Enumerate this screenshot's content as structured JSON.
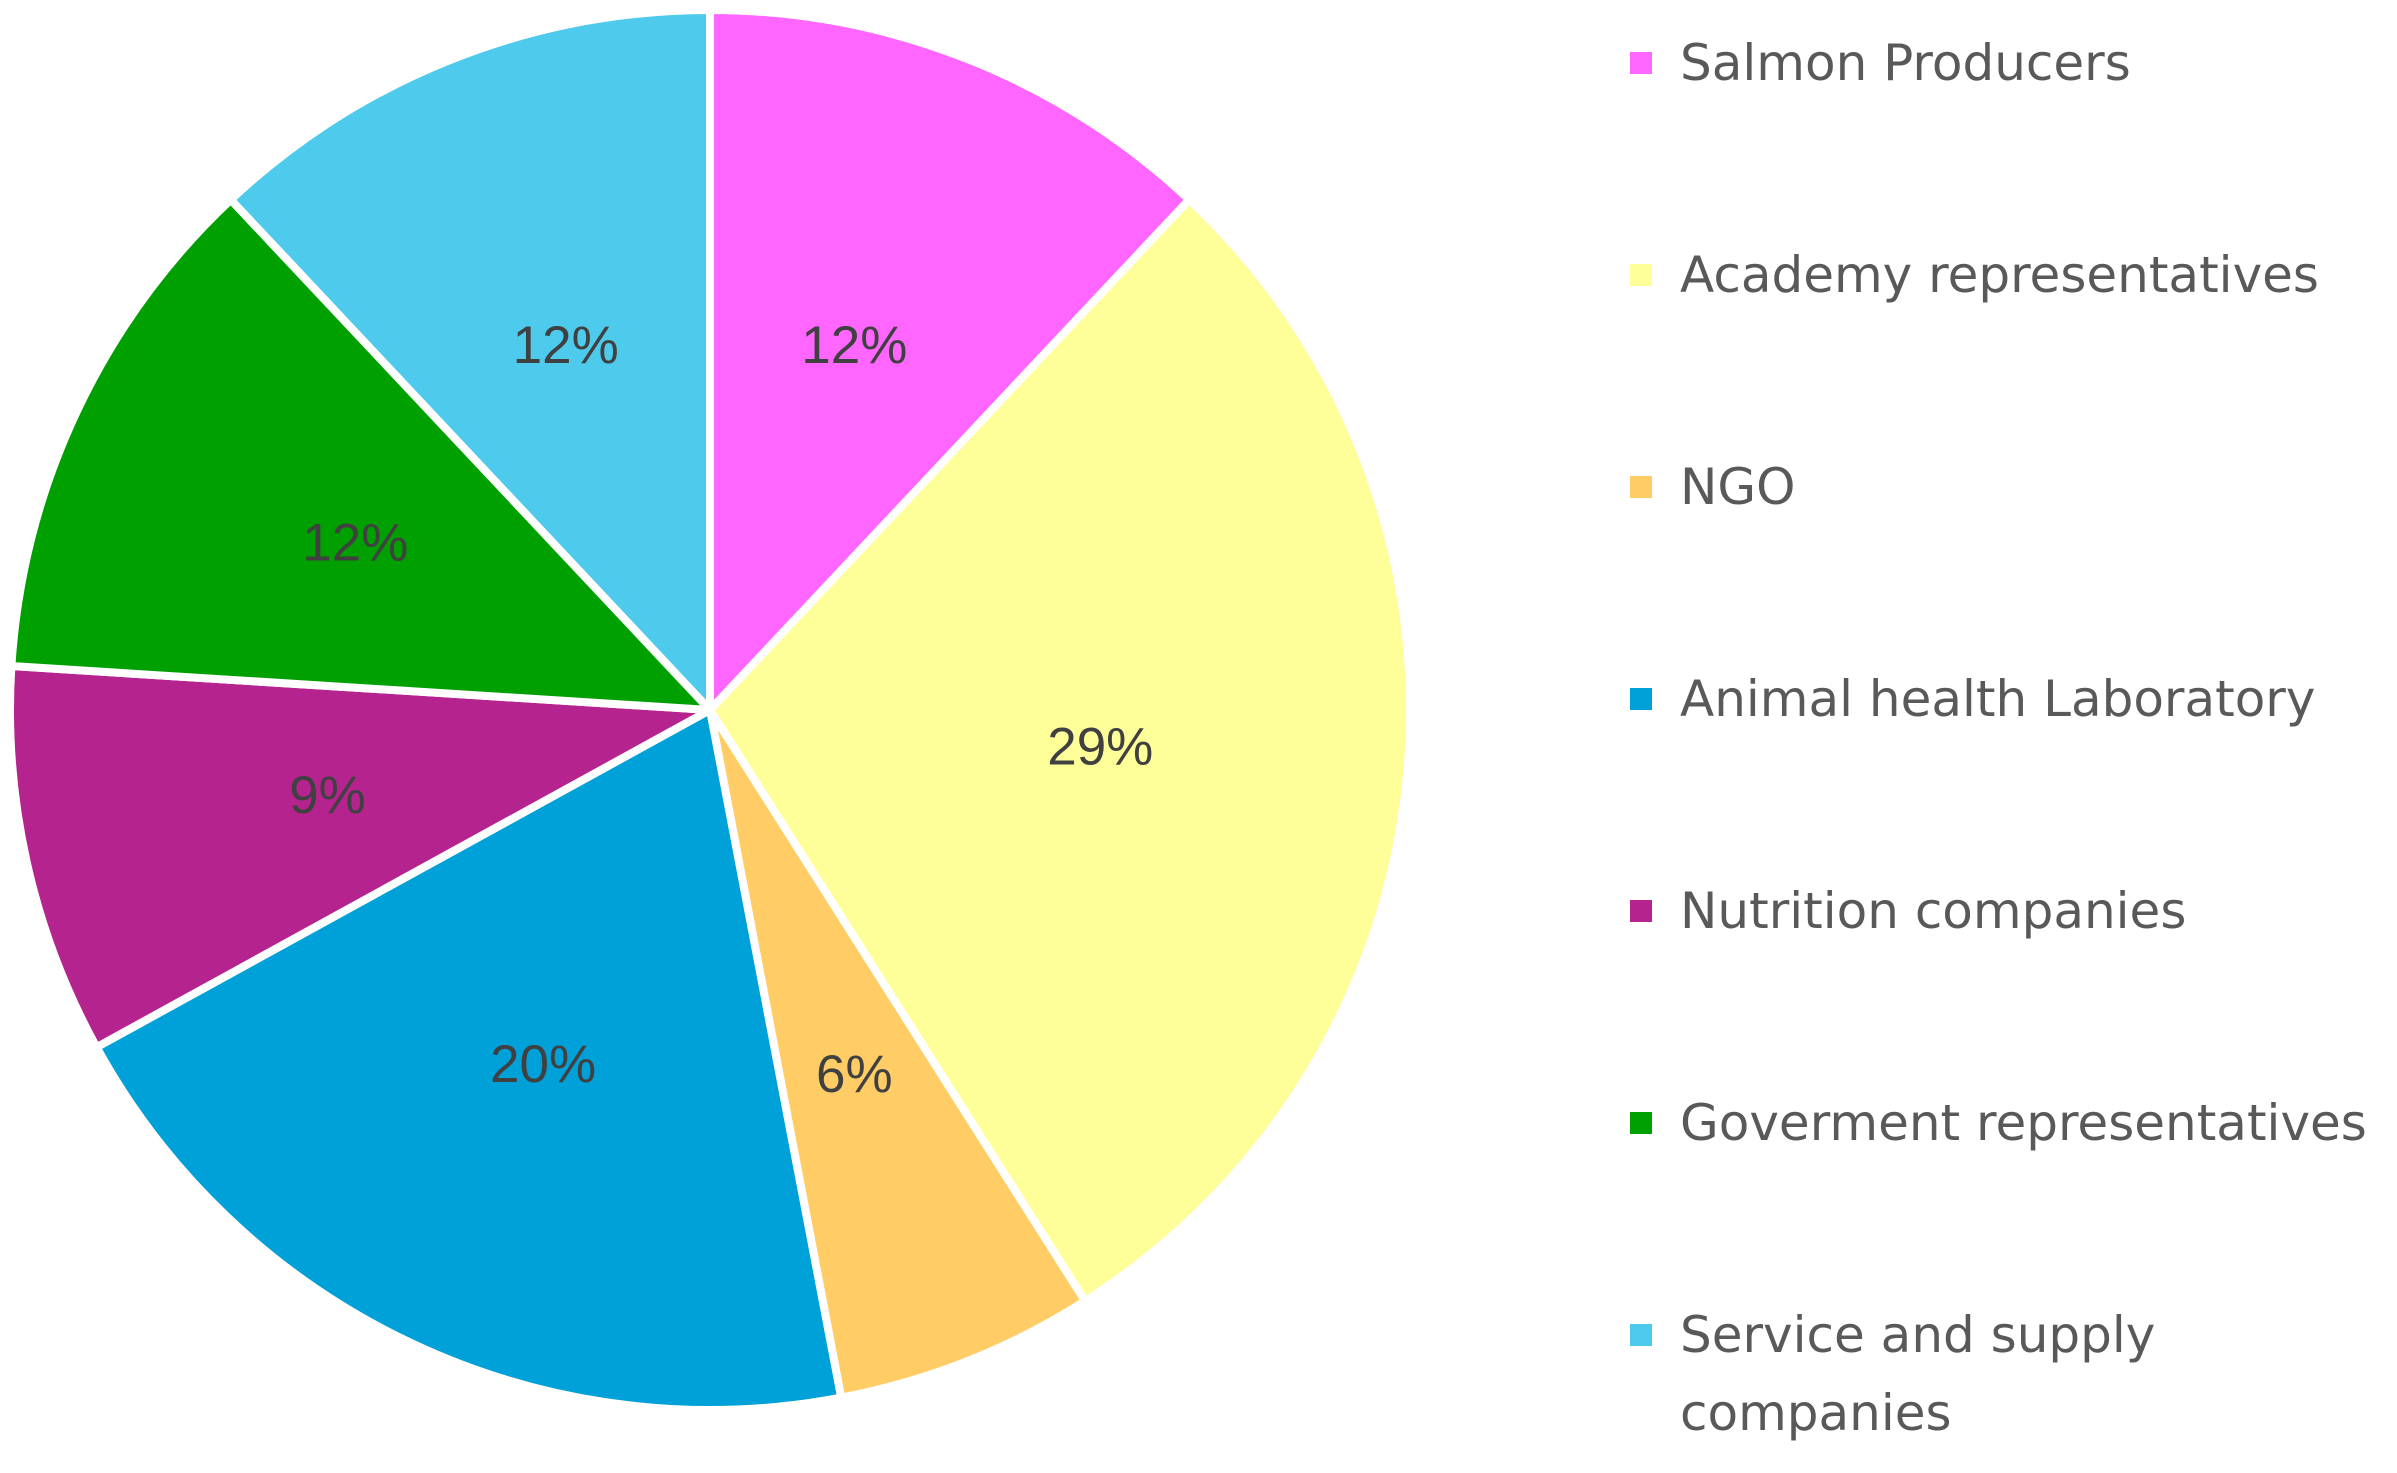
{
  "chart_data": {
    "type": "pie",
    "categories": [
      "Salmon Producers",
      "Academy representatives",
      "NGO",
      "Animal health Laboratory",
      "Nutrition companies",
      "Goverment representatives",
      "Service and supply companies"
    ],
    "values": [
      12,
      29,
      6,
      20,
      9,
      12,
      12
    ],
    "labels": [
      "12%",
      "29%",
      "6%",
      "20%",
      "9%",
      "12%",
      "12%"
    ],
    "colors": [
      "#ff66ff",
      "#ffff99",
      "#ffcc66",
      "#00a0d8",
      "#b5238f",
      "#00a000",
      "#4ecaed"
    ],
    "start_angle_deg": 0,
    "direction": "clockwise",
    "legend_position": "right"
  },
  "legend": {
    "items": [
      {
        "label": "Salmon Producers",
        "color": "#ff66ff"
      },
      {
        "label": "Academy representatives",
        "color": "#ffff99"
      },
      {
        "label": "NGO",
        "color": "#ffcc66"
      },
      {
        "label": "Animal health Laboratory",
        "color": "#00a0d8"
      },
      {
        "label": "Nutrition companies",
        "color": "#b5238f"
      },
      {
        "label": "Goverment representatives",
        "color": "#00a000"
      },
      {
        "label": "Service and supply companies",
        "color": "#4ecaed"
      }
    ]
  }
}
